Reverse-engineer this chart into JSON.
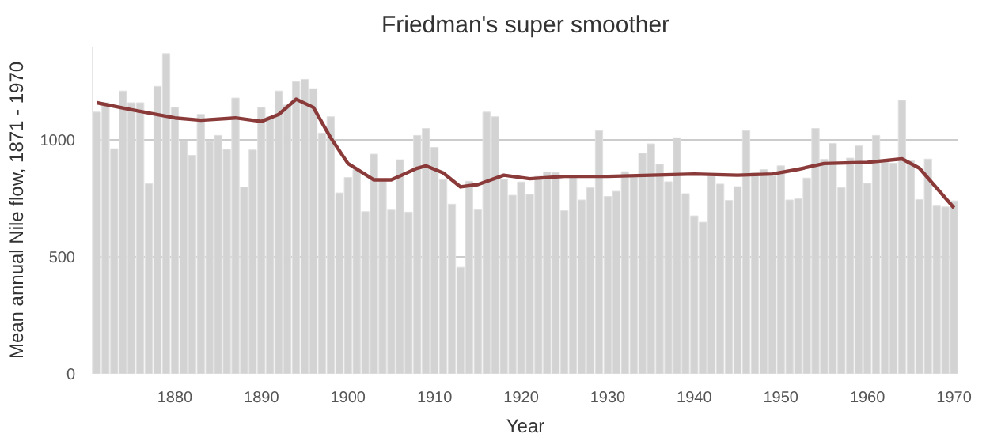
{
  "chart_data": {
    "type": "bar",
    "title": "Friedman's super smoother",
    "xlabel": "Year",
    "ylabel": "Mean annual Nile flow, 1871 - 1970",
    "x": [
      1871,
      1872,
      1873,
      1874,
      1875,
      1876,
      1877,
      1878,
      1879,
      1880,
      1881,
      1882,
      1883,
      1884,
      1885,
      1886,
      1887,
      1888,
      1889,
      1890,
      1891,
      1892,
      1893,
      1894,
      1895,
      1896,
      1897,
      1898,
      1899,
      1900,
      1901,
      1902,
      1903,
      1904,
      1905,
      1906,
      1907,
      1908,
      1909,
      1910,
      1911,
      1912,
      1913,
      1914,
      1915,
      1916,
      1917,
      1918,
      1919,
      1920,
      1921,
      1922,
      1923,
      1924,
      1925,
      1926,
      1927,
      1928,
      1929,
      1930,
      1931,
      1932,
      1933,
      1934,
      1935,
      1936,
      1937,
      1938,
      1939,
      1940,
      1941,
      1942,
      1943,
      1944,
      1945,
      1946,
      1947,
      1948,
      1949,
      1950,
      1951,
      1952,
      1953,
      1954,
      1955,
      1956,
      1957,
      1958,
      1959,
      1960,
      1961,
      1962,
      1963,
      1964,
      1965,
      1966,
      1967,
      1968,
      1969,
      1970
    ],
    "series": [
      {
        "color": "#d3d3d3",
        "values": [
          1120,
          1160,
          963,
          1210,
          1160,
          1160,
          813,
          1230,
          1370,
          1140,
          995,
          935,
          1110,
          994,
          1020,
          960,
          1180,
          799,
          958,
          1140,
          1100,
          1210,
          1150,
          1250,
          1260,
          1220,
          1030,
          1100,
          774,
          840,
          874,
          694,
          940,
          833,
          701,
          916,
          692,
          1020,
          1050,
          969,
          831,
          726,
          456,
          824,
          702,
          1120,
          1100,
          832,
          764,
          821,
          768,
          845,
          864,
          862,
          698,
          845,
          744,
          796,
          1040,
          759,
          781,
          865,
          845,
          944,
          984,
          897,
          822,
          1010,
          771,
          676,
          649,
          846,
          812,
          742,
          801,
          1040,
          860,
          874,
          848,
          890,
          744,
          749,
          838,
          1050,
          918,
          986,
          797,
          923,
          975,
          815,
          1020,
          906,
          901,
          1170,
          912,
          746,
          919,
          718,
          714,
          740
        ]
      },
      {
        "type": "line",
        "color": "#8b3a3a",
        "x": [
          1871,
          1875,
          1880,
          1883,
          1887,
          1890,
          1892,
          1894,
          1896,
          1898,
          1900,
          1903,
          1905,
          1908,
          1909,
          1911,
          1913,
          1915,
          1918,
          1921,
          1925,
          1930,
          1935,
          1940,
          1945,
          1949,
          1952,
          1955,
          1960,
          1964,
          1966,
          1970
        ],
        "values": [
          1160,
          1130,
          1095,
          1085,
          1095,
          1080,
          1110,
          1175,
          1140,
          1010,
          900,
          830,
          830,
          880,
          890,
          860,
          800,
          810,
          850,
          835,
          845,
          845,
          850,
          855,
          850,
          855,
          875,
          900,
          905,
          920,
          880,
          710
        ]
      }
    ],
    "xlim": [
      1870.5,
      1970.5
    ],
    "xticks": [
      1880,
      1890,
      1900,
      1910,
      1920,
      1930,
      1940,
      1950,
      1960,
      1970
    ],
    "ylim": [
      0,
      1400
    ],
    "yticks": [
      0,
      500,
      1000
    ],
    "grid": "y",
    "line_style": "solid",
    "marker": "none"
  }
}
